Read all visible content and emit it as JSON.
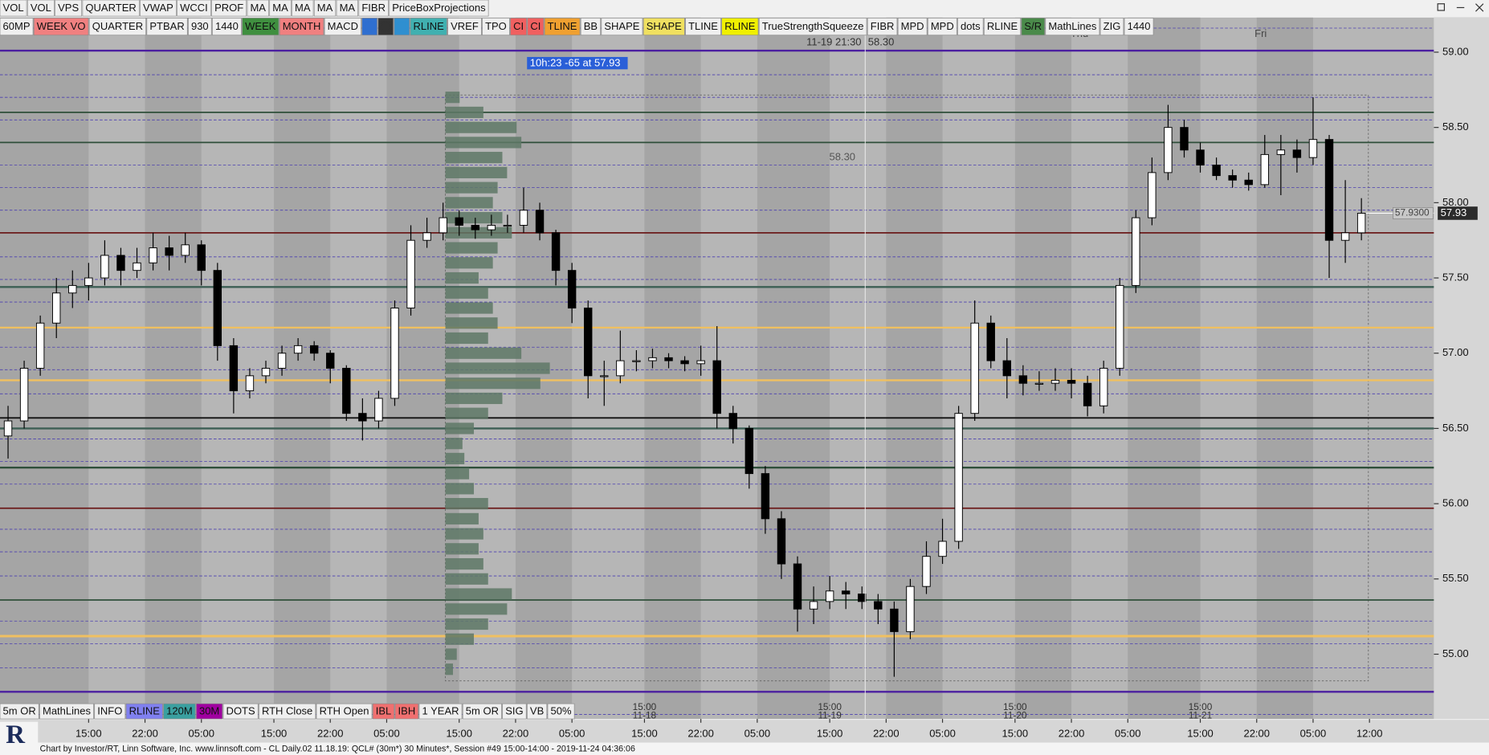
{
  "toolbar_top": [
    {
      "label": "VOL"
    },
    {
      "label": "VOL"
    },
    {
      "label": "VPS"
    },
    {
      "label": "QUARTER"
    },
    {
      "label": "VWAP"
    },
    {
      "label": "WCCI"
    },
    {
      "label": "PROF"
    },
    {
      "label": "MA"
    },
    {
      "label": "MA"
    },
    {
      "label": "MA"
    },
    {
      "label": "MA"
    },
    {
      "label": "MA"
    },
    {
      "label": "FIBR"
    },
    {
      "label": "PriceBoxProjections"
    }
  ],
  "toolbar_second": [
    {
      "label": "60MP"
    },
    {
      "label": "WEEK VO",
      "color": "#f08080"
    },
    {
      "label": "QUARTER"
    },
    {
      "label": "PTBAR"
    },
    {
      "label": "930"
    },
    {
      "label": "1440"
    },
    {
      "label": "WEEK",
      "color": "#3f8f3f"
    },
    {
      "label": "MONTH",
      "color": "#f08080"
    },
    {
      "label": "MACD"
    },
    {
      "icon": "clock",
      "color": "#2f6fd0"
    },
    {
      "icon": "pen",
      "color": "#333333"
    },
    {
      "icon": "drop",
      "color": "#2f8fd0"
    },
    {
      "label": "RLINE",
      "color": "#40b0b0"
    },
    {
      "label": "VREF"
    },
    {
      "label": "TPO"
    },
    {
      "label": "CI",
      "color": "#f06060"
    },
    {
      "label": "CI",
      "color": "#f06060"
    },
    {
      "label": "TLINE",
      "color": "#f0a030"
    },
    {
      "label": "BB"
    },
    {
      "label": "SHAPE"
    },
    {
      "label": "SHAPE",
      "color": "#f0e060"
    },
    {
      "label": "TLINE"
    },
    {
      "label": "RLINE",
      "color": "#f0f000"
    },
    {
      "label": "TrueStrengthSqueeze"
    },
    {
      "label": "FIBR"
    },
    {
      "label": "MPD"
    },
    {
      "label": "MPD"
    },
    {
      "label": "dots"
    },
    {
      "label": "RLINE"
    },
    {
      "label": "S/R",
      "color": "#4a8a4a"
    },
    {
      "label": "MathLines"
    },
    {
      "label": "ZIG"
    },
    {
      "label": "1440"
    }
  ],
  "toolbar_bottom": [
    {
      "label": "5m OR"
    },
    {
      "label": "MathLines"
    },
    {
      "label": "INFO"
    },
    {
      "label": "RLINE",
      "color": "#8080f0"
    },
    {
      "label": "120M",
      "color": "#3aa0a0"
    },
    {
      "label": "30M",
      "color": "#a000a0"
    },
    {
      "label": "DOTS"
    },
    {
      "label": "RTH Close"
    },
    {
      "label": "RTH Open"
    },
    {
      "label": "IBL",
      "color": "#f07070"
    },
    {
      "label": "IBH",
      "color": "#f07070"
    },
    {
      "label": "1 YEAR"
    },
    {
      "label": "5m OR"
    },
    {
      "label": "SIG"
    },
    {
      "label": "VB"
    },
    {
      "label": "50%"
    }
  ],
  "status_bar": "Chart by Investor/RT, Linn Software, Inc. www.linnsoft.com - CL Daily.02   11.18.19: QCL# (30m*) 30 Minutes*, Session #49 15:00-14:00 - 2019-11-24 04:36:06",
  "logo": "R",
  "chart_data": {
    "type": "candlestick",
    "xlim": [
      0,
      178
    ],
    "xticks": [
      {
        "value": 11,
        "label": "15:00"
      },
      {
        "value": 18,
        "label": "22:00"
      },
      {
        "value": 25,
        "label": "05:00"
      },
      {
        "value": 34,
        "label": "15:00"
      },
      {
        "value": 41,
        "label": "22:00"
      },
      {
        "value": 48,
        "label": "05:00"
      },
      {
        "value": 57,
        "label": "15:00"
      },
      {
        "value": 64,
        "label": "22:00"
      },
      {
        "value": 71,
        "label": "05:00"
      },
      {
        "value": 80,
        "label": "15:00"
      },
      {
        "value": 87,
        "label": "22:00"
      },
      {
        "value": 94,
        "label": "05:00"
      },
      {
        "value": 103,
        "label": "15:00"
      },
      {
        "value": 110,
        "label": "22:00"
      },
      {
        "value": 117,
        "label": "05:00"
      },
      {
        "value": 126,
        "label": "15:00"
      },
      {
        "value": 133,
        "label": "22:00"
      },
      {
        "value": 140,
        "label": "05:00"
      },
      {
        "value": 149,
        "label": "15:00"
      },
      {
        "value": 156,
        "label": "22:00"
      },
      {
        "value": 163,
        "label": "05:00"
      },
      {
        "value": 170,
        "label": "12:00"
      }
    ],
    "date_marks": [
      {
        "value": 80,
        "time": "15:00",
        "date": "11-18"
      },
      {
        "value": 103,
        "time": "15:00",
        "date": "11-19"
      },
      {
        "value": 126,
        "time": "15:00",
        "date": "11-20"
      },
      {
        "value": 149,
        "time": "15:00",
        "date": "11-21"
      }
    ],
    "day_labels": [
      {
        "value": 134,
        "label": "Thu"
      },
      {
        "value": 156.5,
        "label": "Fri"
      }
    ],
    "ylim": [
      54.57,
      59.23
    ],
    "yticks": [
      {
        "value": 55,
        "label": "55.00"
      },
      {
        "value": 55.5,
        "label": "55.50"
      },
      {
        "value": 56,
        "label": "56.00"
      },
      {
        "value": 56.5,
        "label": "56.50"
      },
      {
        "value": 57,
        "label": "57.00"
      },
      {
        "value": 57.5,
        "label": "57.50"
      },
      {
        "value": 58,
        "label": "58.00"
      },
      {
        "value": 58.5,
        "label": "58.50"
      },
      {
        "value": 59,
        "label": "59.00"
      }
    ],
    "up_color": "#ffffff",
    "down_color": "#000000",
    "x": [
      1,
      3,
      5,
      7,
      9,
      11,
      13,
      15,
      17,
      19,
      21,
      23,
      25,
      27,
      29,
      31,
      33,
      35,
      37,
      39,
      41,
      43,
      45,
      47,
      49,
      51,
      53,
      55,
      57,
      59,
      61,
      63,
      65,
      67,
      69,
      71,
      73,
      75,
      77,
      79,
      81,
      83,
      85,
      87,
      89,
      91,
      93,
      95,
      97,
      99,
      101,
      103,
      105,
      107,
      109,
      111,
      113,
      115,
      117,
      119,
      121,
      123,
      125,
      127,
      129,
      131,
      133,
      135,
      137,
      139,
      141,
      143,
      145,
      147,
      149,
      151,
      153,
      155,
      157,
      159,
      161,
      163,
      165,
      167,
      169
    ],
    "ohlc": [
      [
        56.45,
        56.65,
        56.3,
        56.55
      ],
      [
        56.55,
        56.95,
        56.5,
        56.9
      ],
      [
        56.9,
        57.25,
        56.85,
        57.2
      ],
      [
        57.2,
        57.5,
        57.1,
        57.4
      ],
      [
        57.4,
        57.55,
        57.3,
        57.45
      ],
      [
        57.45,
        57.6,
        57.35,
        57.5
      ],
      [
        57.5,
        57.75,
        57.45,
        57.65
      ],
      [
        57.65,
        57.7,
        57.45,
        57.55
      ],
      [
        57.55,
        57.7,
        57.5,
        57.6
      ],
      [
        57.6,
        57.8,
        57.55,
        57.7
      ],
      [
        57.7,
        57.78,
        57.55,
        57.65
      ],
      [
        57.65,
        57.8,
        57.6,
        57.72
      ],
      [
        57.72,
        57.75,
        57.45,
        57.55
      ],
      [
        57.55,
        57.6,
        56.95,
        57.05
      ],
      [
        57.05,
        57.1,
        56.6,
        56.75
      ],
      [
        56.75,
        56.9,
        56.7,
        56.85
      ],
      [
        56.85,
        56.95,
        56.8,
        56.9
      ],
      [
        56.9,
        57.05,
        56.85,
        57.0
      ],
      [
        57.0,
        57.1,
        56.95,
        57.05
      ],
      [
        57.05,
        57.08,
        56.95,
        57.0
      ],
      [
        57.0,
        57.02,
        56.8,
        56.9
      ],
      [
        56.9,
        56.92,
        56.55,
        56.6
      ],
      [
        56.6,
        56.7,
        56.42,
        56.55
      ],
      [
        56.55,
        56.75,
        56.5,
        56.7
      ],
      [
        56.7,
        57.35,
        56.65,
        57.3
      ],
      [
        57.3,
        57.85,
        57.25,
        57.75
      ],
      [
        57.75,
        57.9,
        57.7,
        57.8
      ],
      [
        57.8,
        58.0,
        57.75,
        57.9
      ],
      [
        57.9,
        57.95,
        57.78,
        57.85
      ],
      [
        57.85,
        57.9,
        57.76,
        57.82
      ],
      [
        57.82,
        57.92,
        57.78,
        57.85
      ],
      [
        57.85,
        57.92,
        57.8,
        57.85
      ],
      [
        57.85,
        58.1,
        57.8,
        57.95
      ],
      [
        57.95,
        58.0,
        57.75,
        57.8
      ],
      [
        57.8,
        57.82,
        57.45,
        57.55
      ],
      [
        57.55,
        57.6,
        57.2,
        57.3
      ],
      [
        57.3,
        57.35,
        56.7,
        56.85
      ],
      [
        56.85,
        56.95,
        56.65,
        56.85
      ],
      [
        56.85,
        57.15,
        56.8,
        56.95
      ],
      [
        56.95,
        57.02,
        56.88,
        56.95
      ],
      [
        56.95,
        57.03,
        56.9,
        56.97
      ],
      [
        56.97,
        57.0,
        56.9,
        56.95
      ],
      [
        56.95,
        56.98,
        56.88,
        56.93
      ],
      [
        56.93,
        57.05,
        56.85,
        56.95
      ],
      [
        56.95,
        57.18,
        56.5,
        56.6
      ],
      [
        56.6,
        56.65,
        56.4,
        56.5
      ],
      [
        56.5,
        56.52,
        56.1,
        56.2
      ],
      [
        56.2,
        56.25,
        55.8,
        55.9
      ],
      [
        55.9,
        55.95,
        55.5,
        55.6
      ],
      [
        55.6,
        55.65,
        55.15,
        55.3
      ],
      [
        55.3,
        55.45,
        55.2,
        55.35
      ],
      [
        55.35,
        55.52,
        55.3,
        55.42
      ],
      [
        55.42,
        55.48,
        55.3,
        55.4
      ],
      [
        55.4,
        55.45,
        55.3,
        55.35
      ],
      [
        55.35,
        55.4,
        55.2,
        55.3
      ],
      [
        55.3,
        55.35,
        54.85,
        55.15
      ],
      [
        55.15,
        55.5,
        55.1,
        55.45
      ],
      [
        55.45,
        55.75,
        55.4,
        55.65
      ],
      [
        55.65,
        55.9,
        55.6,
        55.75
      ],
      [
        55.75,
        56.65,
        55.7,
        56.6
      ],
      [
        56.6,
        57.35,
        56.55,
        57.2
      ],
      [
        57.2,
        57.25,
        56.9,
        56.95
      ],
      [
        56.95,
        57.1,
        56.7,
        56.85
      ],
      [
        56.85,
        56.92,
        56.72,
        56.8
      ],
      [
        56.8,
        56.88,
        56.75,
        56.8
      ],
      [
        56.8,
        56.9,
        56.75,
        56.82
      ],
      [
        56.82,
        56.9,
        56.7,
        56.8
      ],
      [
        56.8,
        56.85,
        56.58,
        56.65
      ],
      [
        56.65,
        56.95,
        56.6,
        56.9
      ],
      [
        56.9,
        57.5,
        56.85,
        57.45
      ],
      [
        57.45,
        57.95,
        57.4,
        57.9
      ],
      [
        57.9,
        58.3,
        57.85,
        58.2
      ],
      [
        58.2,
        58.65,
        58.15,
        58.5
      ],
      [
        58.5,
        58.55,
        58.3,
        58.35
      ],
      [
        58.35,
        58.4,
        58.2,
        58.25
      ],
      [
        58.25,
        58.3,
        58.15,
        58.18
      ],
      [
        58.18,
        58.22,
        58.1,
        58.15
      ],
      [
        58.15,
        58.2,
        58.08,
        58.12
      ],
      [
        58.12,
        58.45,
        58.1,
        58.32
      ],
      [
        58.32,
        58.45,
        58.05,
        58.35
      ],
      [
        58.35,
        58.42,
        58.2,
        58.3
      ],
      [
        58.3,
        58.7,
        58.25,
        58.42
      ],
      [
        58.42,
        58.45,
        57.5,
        57.75
      ],
      [
        57.75,
        58.15,
        57.6,
        57.8
      ],
      [
        57.8,
        58.03,
        57.75,
        57.93
      ]
    ],
    "levels": [
      {
        "value": 59.01,
        "color": "#4b1fa0",
        "width": 2
      },
      {
        "value": 58.6,
        "color": "#2f4f3a",
        "width": 1.5
      },
      {
        "value": 58.4,
        "color": "#2f4f3a",
        "width": 1.5
      },
      {
        "value": 57.8,
        "color": "#6b1a1a",
        "width": 1.5
      },
      {
        "value": 57.44,
        "color": "#3d5f55",
        "width": 2
      },
      {
        "value": 57.17,
        "color": "#f0c060",
        "width": 2
      },
      {
        "value": 56.82,
        "color": "#f0c060",
        "width": 2
      },
      {
        "value": 56.57,
        "color": "#111111",
        "width": 1.5
      },
      {
        "value": 56.5,
        "color": "#3d5f55",
        "width": 2
      },
      {
        "value": 56.24,
        "color": "#2f4f3a",
        "width": 2
      },
      {
        "value": 55.97,
        "color": "#6b1a1a",
        "width": 1.5
      },
      {
        "value": 55.36,
        "color": "#2f4f3a",
        "width": 1.5
      },
      {
        "value": 55.12,
        "color": "#f0c060",
        "width": 2.5
      },
      {
        "value": 54.75,
        "color": "#4b1fa0",
        "width": 2
      }
    ],
    "dotted_levels": {
      "color": "#4b3fb0",
      "values": [
        59.16,
        58.85,
        58.7,
        58.55,
        58.25,
        58.1,
        57.95,
        57.64,
        57.49,
        57.34,
        57.04,
        56.89,
        56.73,
        56.43,
        56.28,
        56.13,
        55.83,
        55.68,
        55.52,
        55.22,
        55.07,
        54.91,
        54.6
      ]
    },
    "volume_profile": {
      "color": "#5e7866",
      "prices": [
        54.9,
        55.0,
        55.1,
        55.2,
        55.3,
        55.4,
        55.5,
        55.6,
        55.7,
        55.8,
        55.9,
        56.0,
        56.1,
        56.2,
        56.3,
        56.4,
        56.5,
        56.6,
        56.7,
        56.8,
        56.9,
        57.0,
        57.1,
        57.2,
        57.3,
        57.4,
        57.5,
        57.6,
        57.7,
        57.8,
        57.9,
        58.0,
        58.1,
        58.2,
        58.3,
        58.4,
        58.5,
        58.6,
        58.7
      ],
      "values": [
        8,
        12,
        30,
        45,
        65,
        70,
        45,
        40,
        35,
        40,
        35,
        45,
        30,
        25,
        20,
        18,
        30,
        45,
        60,
        100,
        110,
        80,
        45,
        55,
        50,
        45,
        35,
        50,
        55,
        70,
        60,
        50,
        55,
        65,
        60,
        80,
        75,
        40,
        15
      ]
    },
    "crosshair": {
      "x": 107.4,
      "y": 58.3,
      "x_label": "11-19 21:30",
      "y_label": "58.30"
    },
    "info_label": "10h:23  -65 at 57.93",
    "last_price": {
      "value": 57.93,
      "label": "57.9300"
    }
  }
}
